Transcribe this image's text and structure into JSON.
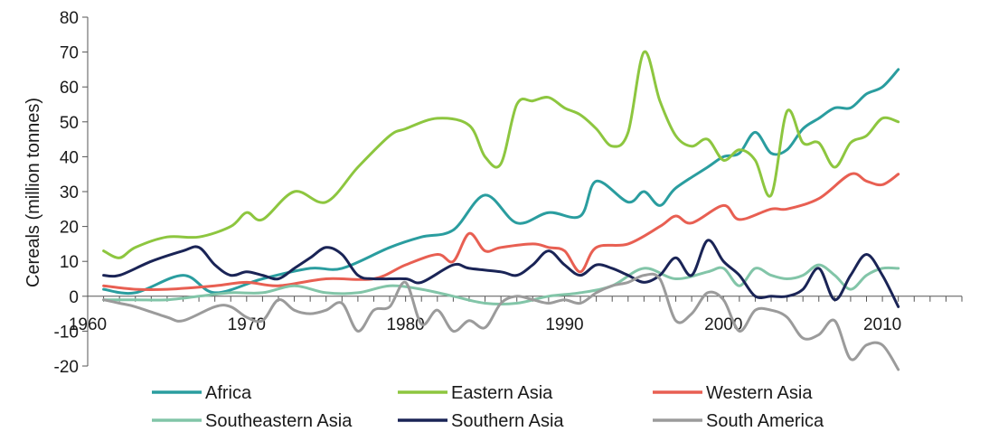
{
  "chart_data": {
    "type": "line",
    "title": "",
    "xlabel": "",
    "ylabel": "Cereals (million tonnes)",
    "xlim": [
      1960,
      2015
    ],
    "ylim": [
      -20,
      80
    ],
    "y_ticks": [
      -20,
      -10,
      0,
      10,
      20,
      30,
      40,
      50,
      60,
      70,
      80
    ],
    "x_tick_labels": [
      1960,
      1970,
      1980,
      1990,
      2000,
      2010
    ],
    "x_minor_step": 1,
    "grid": false,
    "legend_position": "bottom",
    "series": [
      {
        "name": "Africa",
        "color": "#2a9d9f",
        "x": [
          1961,
          1963,
          1966,
          1968,
          1971,
          1974,
          1976,
          1979,
          1981,
          1983,
          1985,
          1987,
          1989,
          1991,
          1992,
          1994,
          1995,
          1996,
          1997,
          1999,
          2000,
          2001,
          2002,
          2003,
          2004,
          2005,
          2006,
          2007,
          2008,
          2009,
          2010,
          2011
        ],
        "y": [
          2,
          1,
          6,
          1,
          5,
          8,
          8,
          14,
          17,
          19,
          29,
          21,
          24,
          23,
          33,
          27,
          30,
          26,
          31,
          37,
          40,
          41,
          47,
          41,
          42,
          48,
          51,
          54,
          54,
          58,
          60,
          65
        ]
      },
      {
        "name": "Eastern Asia",
        "color": "#8dc63f",
        "x": [
          1961,
          1962,
          1963,
          1965,
          1967,
          1969,
          1970,
          1971,
          1973,
          1975,
          1977,
          1979,
          1980,
          1982,
          1984,
          1985,
          1986,
          1987,
          1988,
          1989,
          1990,
          1991,
          1992,
          1993,
          1994,
          1995,
          1996,
          1997,
          1998,
          1999,
          2000,
          2001,
          2002,
          2003,
          2004,
          2005,
          2006,
          2007,
          2008,
          2009,
          2010,
          2011
        ],
        "y": [
          13,
          11,
          14,
          17,
          17,
          20,
          24,
          22,
          30,
          27,
          37,
          46,
          48,
          51,
          49,
          40,
          38,
          55,
          56,
          57,
          54,
          52,
          48,
          43,
          47,
          70,
          56,
          46,
          43,
          45,
          39,
          42,
          39,
          29,
          53,
          44,
          44,
          37,
          44,
          46,
          51,
          50
        ]
      },
      {
        "name": "Western Asia",
        "color": "#e85f52",
        "x": [
          1961,
          1963,
          1965,
          1968,
          1970,
          1972,
          1975,
          1978,
          1980,
          1982,
          1983,
          1984,
          1985,
          1986,
          1988,
          1989,
          1990,
          1991,
          1992,
          1994,
          1996,
          1997,
          1998,
          2000,
          2001,
          2003,
          2004,
          2006,
          2008,
          2009,
          2010,
          2011
        ],
        "y": [
          3,
          2,
          2,
          3,
          4,
          3,
          5,
          5,
          9,
          12,
          10,
          18,
          13,
          14,
          15,
          14,
          13,
          7,
          14,
          15,
          20,
          23,
          21,
          26,
          22,
          25,
          25,
          28,
          35,
          33,
          32,
          35
        ]
      },
      {
        "name": "Southeastern Asia",
        "color": "#82c5a8",
        "x": [
          1961,
          1963,
          1965,
          1967,
          1969,
          1971,
          1973,
          1975,
          1977,
          1979,
          1981,
          1983,
          1985,
          1987,
          1989,
          1991,
          1993,
          1995,
          1997,
          1999,
          2000,
          2001,
          2002,
          2003,
          2004,
          2005,
          2006,
          2007,
          2008,
          2009,
          2010,
          2011
        ],
        "y": [
          -1,
          -1,
          -1,
          0,
          1,
          1,
          3,
          1,
          1,
          3,
          2,
          0,
          -2,
          -2,
          0,
          1,
          3,
          8,
          5,
          7,
          8,
          3,
          8,
          6,
          5,
          6,
          9,
          6,
          2,
          6,
          8,
          8
        ]
      },
      {
        "name": "Southern Asia",
        "color": "#1a2456",
        "x": [
          1961,
          1962,
          1964,
          1966,
          1967,
          1968,
          1969,
          1970,
          1971,
          1972,
          1973,
          1974,
          1975,
          1976,
          1977,
          1978,
          1980,
          1981,
          1983,
          1984,
          1986,
          1987,
          1988,
          1989,
          1990,
          1991,
          1992,
          1993,
          1994,
          1995,
          1996,
          1997,
          1998,
          1999,
          2000,
          2001,
          2002,
          2003,
          2004,
          2005,
          2006,
          2007,
          2008,
          2009,
          2010,
          2011
        ],
        "y": [
          6,
          6,
          10,
          13,
          14,
          9,
          6,
          7,
          6,
          5,
          8,
          11,
          14,
          12,
          6,
          5,
          5,
          4,
          9,
          8,
          7,
          6,
          9,
          13,
          9,
          6,
          9,
          8,
          6,
          4,
          6,
          11,
          6,
          16,
          10,
          6,
          0,
          0,
          0,
          2,
          8,
          -1,
          6,
          12,
          6,
          -3
        ]
      },
      {
        "name": "South America",
        "color": "#9b9b9b",
        "x": [
          1961,
          1962,
          1963,
          1965,
          1966,
          1968,
          1969,
          1970,
          1971,
          1972,
          1973,
          1974,
          1975,
          1976,
          1977,
          1978,
          1979,
          1980,
          1981,
          1982,
          1983,
          1984,
          1985,
          1986,
          1987,
          1988,
          1989,
          1990,
          1991,
          1992,
          1993,
          1994,
          1995,
          1996,
          1997,
          1998,
          1999,
          2000,
          2001,
          2002,
          2003,
          2004,
          2005,
          2006,
          2007,
          2008,
          2009,
          2010,
          2011
        ],
        "y": [
          -1,
          -2,
          -3,
          -6,
          -7,
          -3,
          -3,
          -6,
          -7,
          -1,
          -4,
          -5,
          -4,
          -2,
          -10,
          -4,
          -3,
          4,
          -8,
          -4,
          -10,
          -7,
          -9,
          -2,
          0,
          -1,
          -2,
          -1,
          -2,
          1,
          3,
          4,
          6,
          5,
          -7,
          -5,
          1,
          -1,
          -10,
          -4,
          -4,
          -6,
          -12,
          -11,
          -7,
          -18,
          -14,
          -14,
          -21
        ]
      }
    ]
  }
}
